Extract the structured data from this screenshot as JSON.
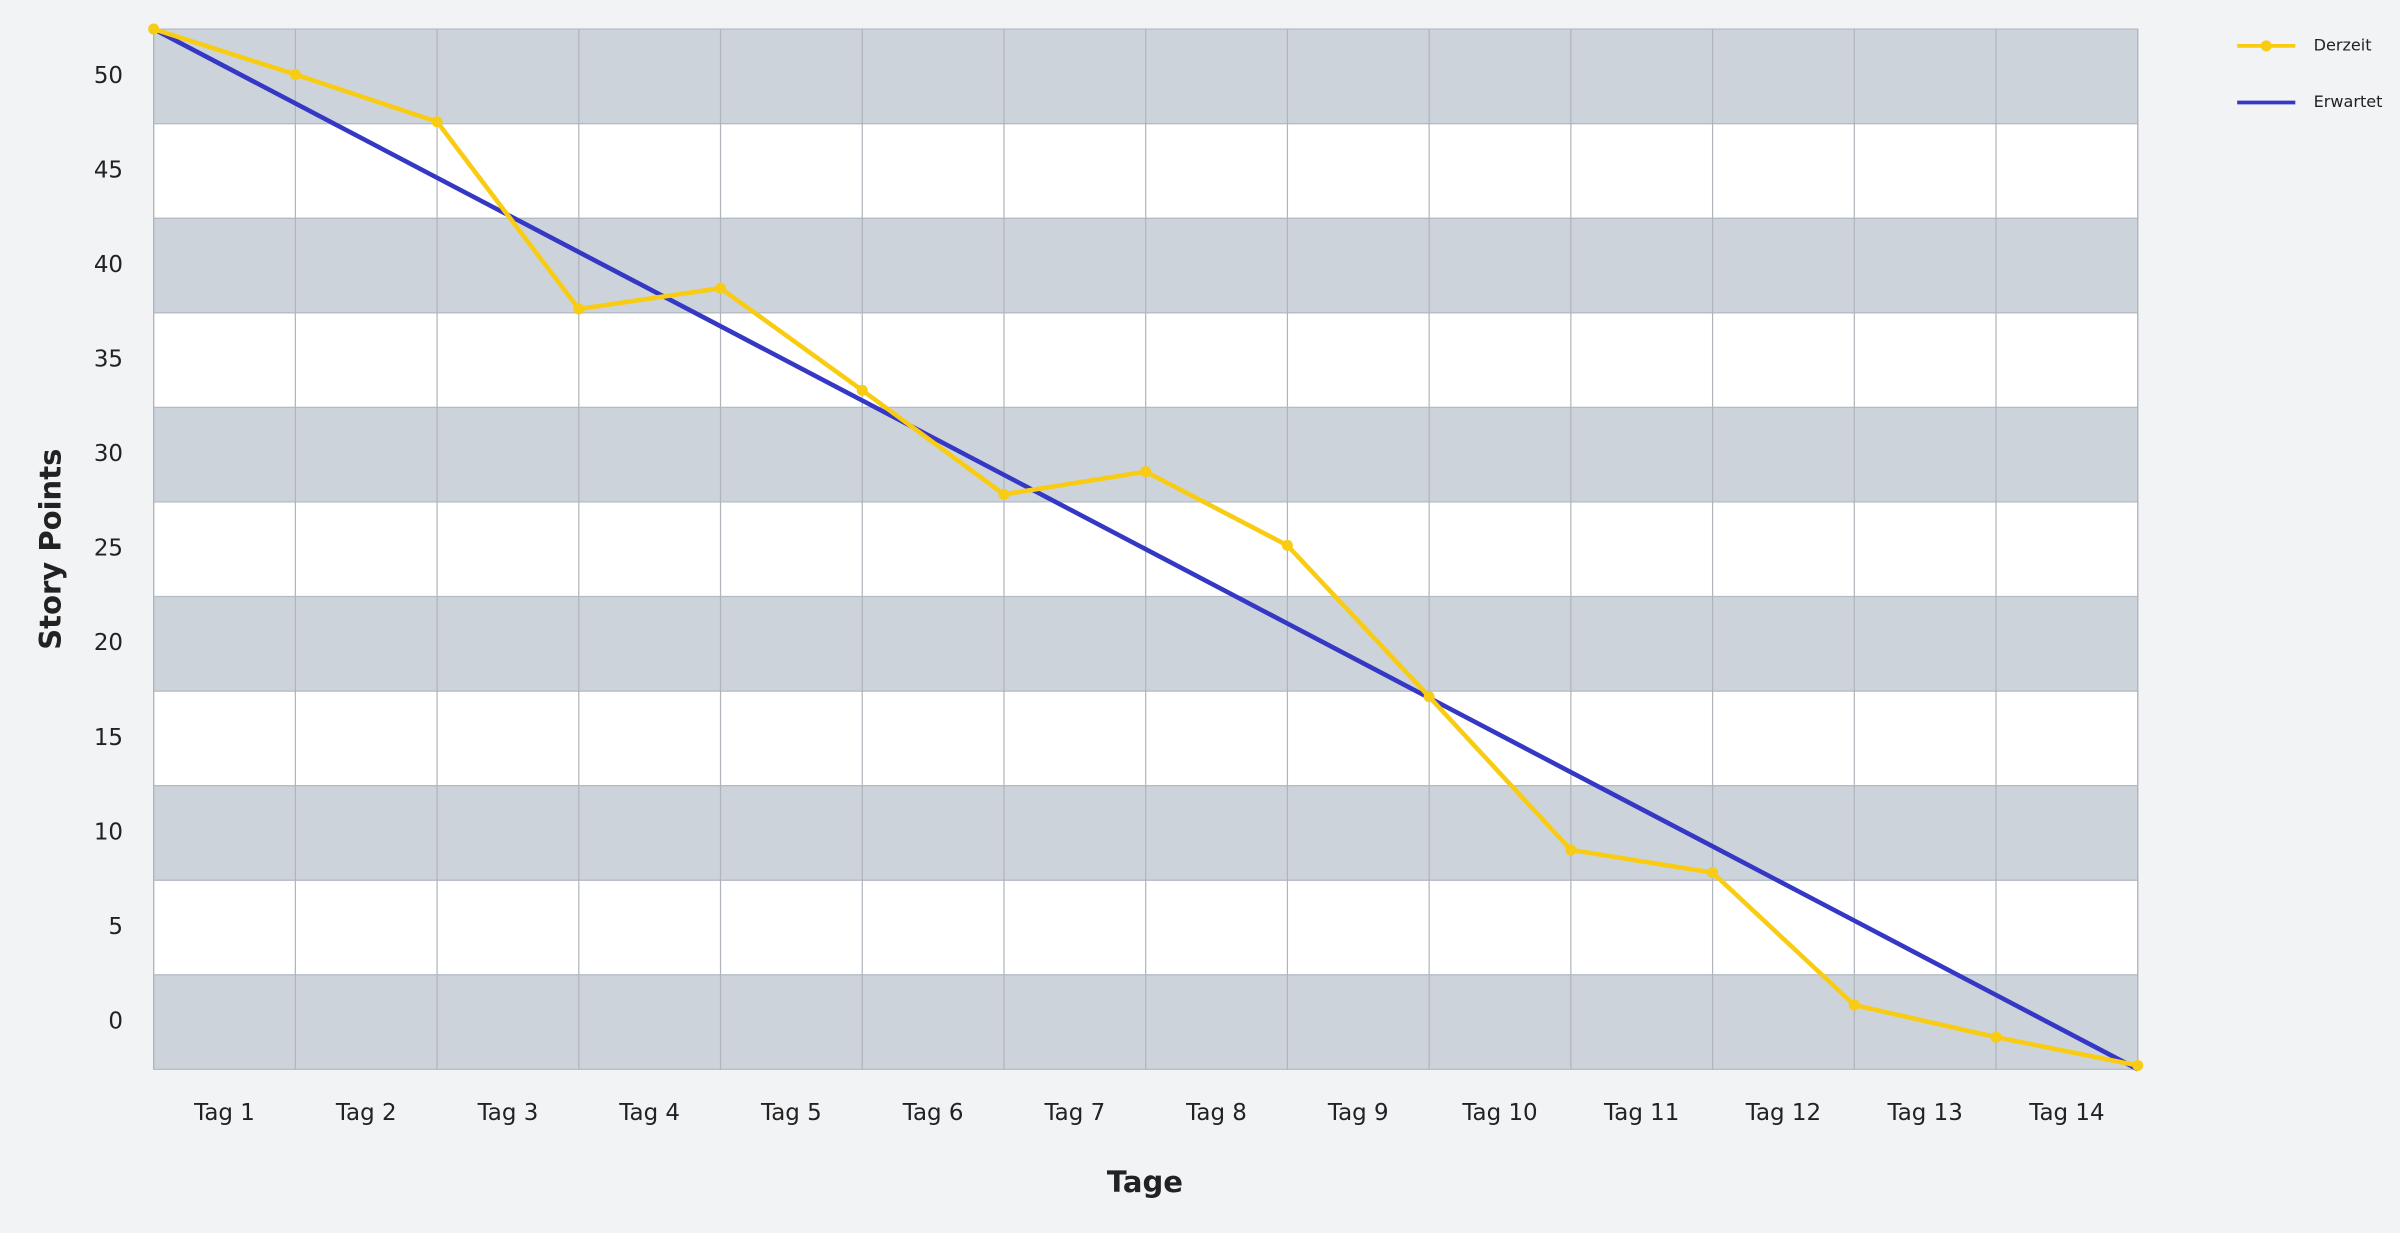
{
  "chart_data": {
    "type": "line",
    "x_label": "Tage",
    "y_label": "Story Points",
    "x": [
      0,
      1,
      2,
      3,
      4,
      5,
      6,
      7,
      8,
      9,
      10,
      11,
      12,
      13,
      14
    ],
    "xlim": [
      0,
      14
    ],
    "xticks": [
      {
        "value": 0.5,
        "label": "Tag 1"
      },
      {
        "value": 1.5,
        "label": "Tag 2"
      },
      {
        "value": 2.5,
        "label": "Tag 3"
      },
      {
        "value": 3.5,
        "label": "Tag 4"
      },
      {
        "value": 4.5,
        "label": "Tag 5"
      },
      {
        "value": 5.5,
        "label": "Tag 6"
      },
      {
        "value": 6.5,
        "label": "Tag 7"
      },
      {
        "value": 7.5,
        "label": "Tag 8"
      },
      {
        "value": 8.5,
        "label": "Tag 9"
      },
      {
        "value": 9.5,
        "label": "Tag 10"
      },
      {
        "value": 10.5,
        "label": "Tag 11"
      },
      {
        "value": 11.5,
        "label": "Tag 12"
      },
      {
        "value": 12.5,
        "label": "Tag 13"
      },
      {
        "value": 13.5,
        "label": "Tag 14"
      }
    ],
    "ylim": [
      -2.5,
      52.5
    ],
    "yticks": [
      0,
      5,
      10,
      15,
      20,
      25,
      30,
      35,
      40,
      45,
      50
    ],
    "banded_grid": true,
    "legend": "top-right",
    "series": [
      {
        "name": "Derzeit",
        "color": "#f9cc14",
        "markers": true,
        "values": [
          52.5,
          50.1,
          47.6,
          37.7,
          38.8,
          33.4,
          27.9,
          29.1,
          25.2,
          17.2,
          9.1,
          7.9,
          0.9,
          -0.8,
          -2.3
        ]
      },
      {
        "name": "Erwartet",
        "color": "#3538c4",
        "markers": false,
        "values": [
          52.5,
          48.57,
          44.64,
          40.71,
          36.79,
          32.86,
          28.93,
          25,
          21.07,
          17.14,
          13.21,
          9.29,
          5.36,
          1.43,
          -2.5
        ]
      }
    ]
  }
}
